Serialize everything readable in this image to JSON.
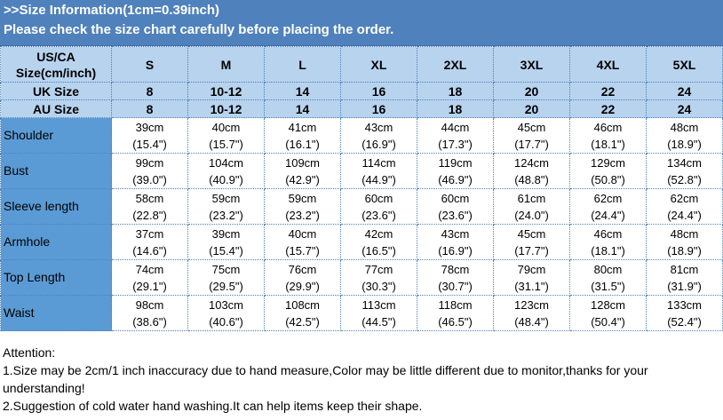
{
  "header": {
    "line1": ">>Size Information(1cm=0.39inch)",
    "line2": "Please check the size chart carefully before placing the order."
  },
  "size_header": {
    "label": "US/CA Size(cm/inch)",
    "sizes": [
      "S",
      "M",
      "L",
      "XL",
      "2XL",
      "3XL",
      "4XL",
      "5XL"
    ]
  },
  "uk": {
    "label": "UK Size",
    "values": [
      "8",
      "10-12",
      "14",
      "16",
      "18",
      "20",
      "22",
      "24"
    ]
  },
  "au": {
    "label": "AU Size",
    "values": [
      "8",
      "10-12",
      "14",
      "16",
      "18",
      "20",
      "22",
      "24"
    ]
  },
  "rows": [
    {
      "label": "Shoulder",
      "cm": [
        "39cm",
        "40cm",
        "41cm",
        "43cm",
        "44cm",
        "45cm",
        "46cm",
        "48cm"
      ],
      "in": [
        "(15.4\")",
        "(15.7\")",
        "(16.1\")",
        "(16.9\")",
        "(17.3\")",
        "(17.7\")",
        "(18.1\")",
        "(18.9\")"
      ]
    },
    {
      "label": "Bust",
      "cm": [
        "99cm",
        "104cm",
        "109cm",
        "114cm",
        "119cm",
        "124cm",
        "129cm",
        "134cm"
      ],
      "in": [
        "(39.0\")",
        "(40.9\")",
        "(42.9\")",
        "(44.9\")",
        "(46.9\")",
        "(48.8\")",
        "(50.8\")",
        "(52.8\")"
      ]
    },
    {
      "label": "Sleeve length",
      "cm": [
        "58cm",
        "59cm",
        "59cm",
        "60cm",
        "60cm",
        "61cm",
        "62cm",
        "62cm"
      ],
      "in": [
        "(22.8\")",
        "(23.2\")",
        "(23.2\")",
        "(23.6\")",
        "(23.6\")",
        "(24.0\")",
        "(24.4\")",
        "(24.4\")"
      ]
    },
    {
      "label": "Armhole",
      "cm": [
        "37cm",
        "39cm",
        "40cm",
        "42cm",
        "43cm",
        "45cm",
        "46cm",
        "48cm"
      ],
      "in": [
        "(14.6\")",
        "(15.4\")",
        "(15.7\")",
        "(16.5\")",
        "(16.9\")",
        "(17.7\")",
        "(18.1\")",
        "(18.9\")"
      ]
    },
    {
      "label": "Top Length",
      "cm": [
        "74cm",
        "75cm",
        "76cm",
        "77cm",
        "78cm",
        "79cm",
        "80cm",
        "81cm"
      ],
      "in": [
        "(29.1\")",
        "(29.5\")",
        "(29.9\")",
        "(30.3\")",
        "(30.7\")",
        "(31.1\")",
        "(31.5\")",
        "(31.9\")"
      ]
    },
    {
      "label": "Waist",
      "cm": [
        "98cm",
        "103cm",
        "108cm",
        "113cm",
        "118cm",
        "123cm",
        "128cm",
        "133cm"
      ],
      "in": [
        "(38.6\")",
        "(40.6\")",
        "(42.5\")",
        "(44.5\")",
        "(46.5\")",
        "(48.4\")",
        "(50.4\")",
        "(52.4\")"
      ]
    }
  ],
  "attention": {
    "title": "Attention:",
    "items": [
      "1.Size may be 2cm/1 inch inaccuracy due to hand measure,Color may be little different due to monitor,thanks for your understanding!",
      "2.Suggestion of cold water hand washing.It can help items keep their shape."
    ]
  },
  "colors": {
    "header_bg": "#4f81bd",
    "label_bg": "#5b9bd5",
    "size_header_bg": "#b8d3ee"
  }
}
